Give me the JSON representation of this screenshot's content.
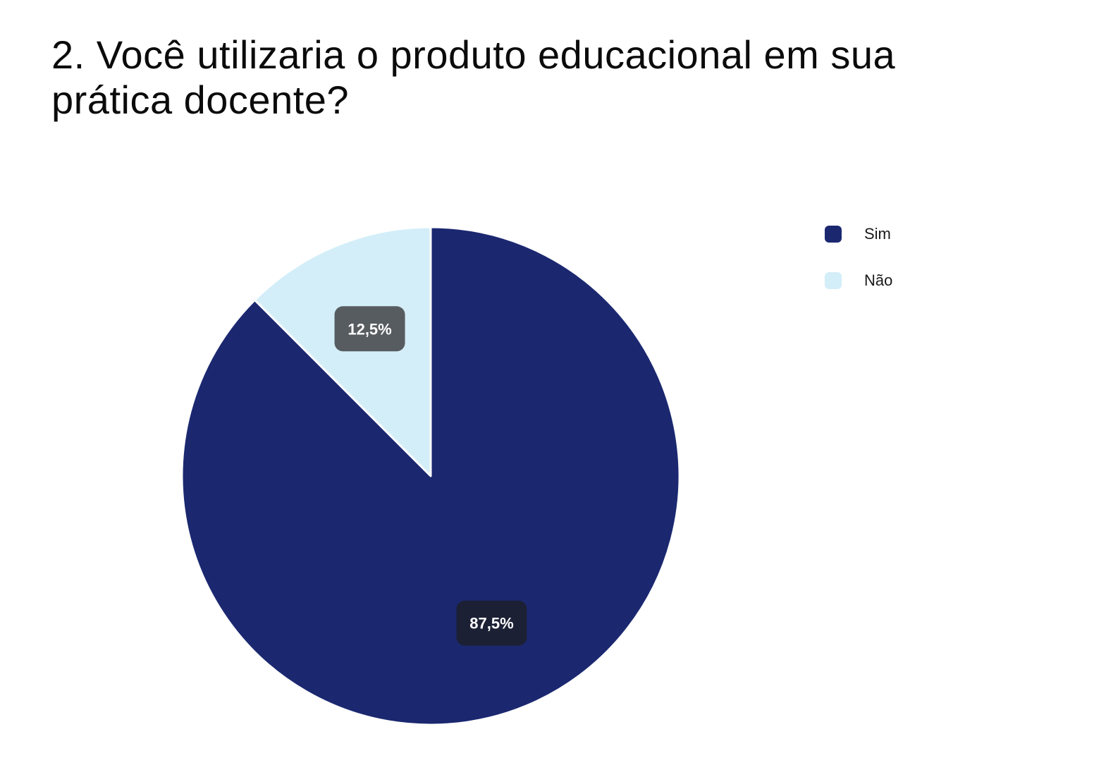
{
  "title": "2. Você utilizaria o produto educacional em sua prática docente?",
  "chart_data": {
    "type": "pie",
    "slices": [
      {
        "label": "Sim",
        "value": 87.5,
        "display": "87,5%",
        "color": "#1b2870",
        "label_bg": "#1c2035"
      },
      {
        "label": "Não",
        "value": 12.5,
        "display": "12,5%",
        "color": "#d3eef8",
        "label_bg": "#575c61"
      }
    ],
    "legend_position": "right"
  },
  "legend": [
    {
      "label": "Sim",
      "color": "#1b2870"
    },
    {
      "label": "Não",
      "color": "#d3eef8"
    }
  ]
}
